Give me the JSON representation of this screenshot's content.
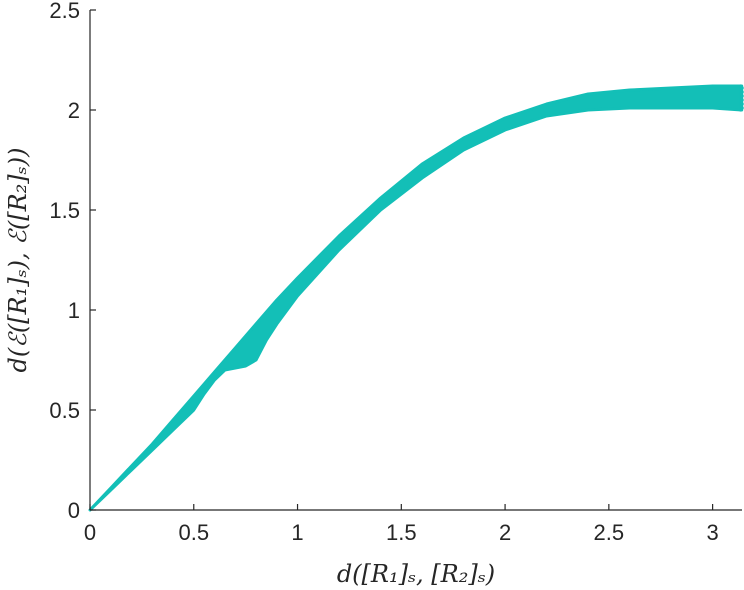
{
  "chart_data": {
    "type": "scatter",
    "title": "",
    "xlabel": "d([R₁]ₛ, [R₂]ₛ)",
    "ylabel": "d(ℰ([R₁]ₛ), ℰ([R₂]ₛ))",
    "xlim": [
      0,
      3.14159
    ],
    "ylim": [
      0,
      2.5
    ],
    "xticks": [
      {
        "value": 0,
        "label": "0"
      },
      {
        "value": 0.5,
        "label": "0.5"
      },
      {
        "value": 1,
        "label": "1"
      },
      {
        "value": 1.5,
        "label": "1.5"
      },
      {
        "value": 2,
        "label": "2"
      },
      {
        "value": 2.5,
        "label": "2.5"
      },
      {
        "value": 3,
        "label": "3"
      }
    ],
    "yticks": [
      {
        "value": 0,
        "label": "0"
      },
      {
        "value": 0.5,
        "label": "0.5"
      },
      {
        "value": 1,
        "label": "1"
      },
      {
        "value": 1.5,
        "label": "1.5"
      },
      {
        "value": 2,
        "label": "2"
      },
      {
        "value": 2.5,
        "label": "2.5"
      }
    ],
    "grid": false,
    "marker_color": "#13bfb7",
    "series": [
      {
        "upper_envelope": {
          "x": [
            0,
            0.1,
            0.2,
            0.3,
            0.4,
            0.5,
            0.6,
            0.7,
            0.8,
            0.9,
            1.0,
            1.2,
            1.4,
            1.6,
            1.8,
            2.0,
            2.2,
            2.4,
            2.6,
            2.8,
            3.0,
            3.14
          ],
          "y": [
            0,
            0.11,
            0.22,
            0.33,
            0.45,
            0.57,
            0.69,
            0.81,
            0.93,
            1.05,
            1.16,
            1.37,
            1.56,
            1.73,
            1.86,
            1.96,
            2.03,
            2.08,
            2.1,
            2.11,
            2.12,
            2.12
          ]
        },
        "lower_envelope": {
          "x": [
            0,
            0.1,
            0.2,
            0.3,
            0.4,
            0.5,
            0.55,
            0.6,
            0.65,
            0.7,
            0.75,
            0.8,
            0.85,
            0.9,
            1.0,
            1.2,
            1.4,
            1.6,
            1.8,
            2.0,
            2.2,
            2.4,
            2.6,
            2.8,
            3.0,
            3.14
          ],
          "y": [
            0,
            0.1,
            0.2,
            0.3,
            0.4,
            0.5,
            0.58,
            0.65,
            0.7,
            0.71,
            0.72,
            0.75,
            0.85,
            0.93,
            1.07,
            1.3,
            1.5,
            1.66,
            1.8,
            1.9,
            1.97,
            2.0,
            2.01,
            2.01,
            2.01,
            2.0
          ]
        }
      }
    ]
  }
}
